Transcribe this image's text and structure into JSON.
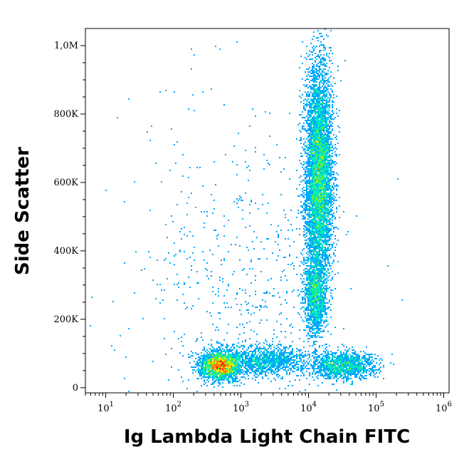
{
  "chart_data": {
    "type": "scatter",
    "subtype": "flow-cytometry-density-dot-plot",
    "xlabel": "Ig Lambda Light Chain FITC",
    "ylabel": "Side Scatter",
    "x_scale": "log",
    "y_scale": "linear",
    "xlim": [
      5,
      1200000
    ],
    "ylim": [
      -15000,
      1050000
    ],
    "grid": false,
    "x_ticks": [
      {
        "value": 10,
        "base": "10",
        "exp": "1"
      },
      {
        "value": 100,
        "base": "10",
        "exp": "2"
      },
      {
        "value": 1000,
        "base": "10",
        "exp": "3"
      },
      {
        "value": 10000,
        "base": "10",
        "exp": "4"
      },
      {
        "value": 100000,
        "base": "10",
        "exp": "5"
      },
      {
        "value": 1000000,
        "base": "10",
        "exp": "6"
      }
    ],
    "y_ticks": [
      {
        "value": 0,
        "label": "0"
      },
      {
        "value": 200000,
        "label": "200K"
      },
      {
        "value": 400000,
        "label": "400K"
      },
      {
        "value": 600000,
        "label": "600K"
      },
      {
        "value": 800000,
        "label": "800K"
      },
      {
        "value": 1000000,
        "label": "1,0M"
      }
    ],
    "density_colors": [
      "#0000ff",
      "#00a8ff",
      "#00e8c0",
      "#60f040",
      "#e8f000",
      "#ff8000",
      "#ff0000"
    ],
    "populations": [
      {
        "x_log_center": 2.7,
        "y_center": 65000,
        "x_log_sd": 0.14,
        "y_sd": 20000,
        "weight": 0.22
      },
      {
        "x_log_center": 3.4,
        "y_center": 80000,
        "x_log_sd": 0.3,
        "y_sd": 22000,
        "weight": 0.08
      },
      {
        "x_log_center": 4.15,
        "y_center": 620000,
        "x_log_sd": 0.1,
        "y_sd": 160000,
        "weight": 0.45
      },
      {
        "x_log_center": 4.1,
        "y_center": 270000,
        "x_log_sd": 0.08,
        "y_sd": 60000,
        "weight": 0.1
      },
      {
        "x_log_center": 4.5,
        "y_center": 65000,
        "x_log_sd": 0.25,
        "y_sd": 20000,
        "weight": 0.1
      },
      {
        "x_log_center": 3.0,
        "y_center": 300000,
        "x_log_sd": 0.8,
        "y_sd": 250000,
        "weight": 0.05
      }
    ]
  }
}
